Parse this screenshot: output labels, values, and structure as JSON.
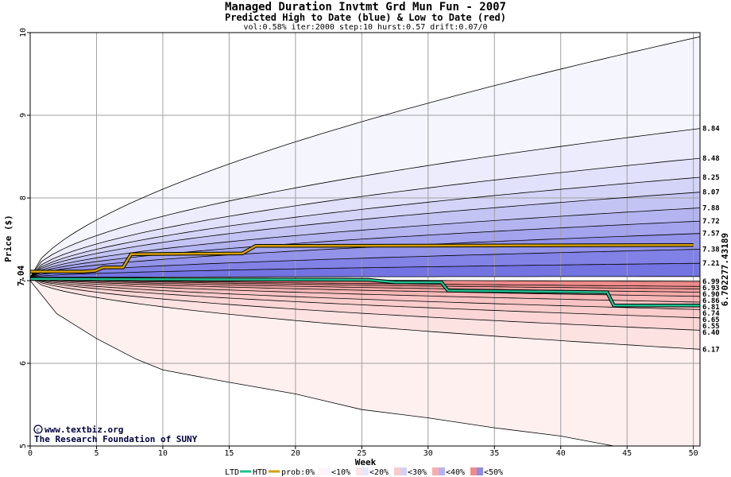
{
  "chart_data": {
    "type": "area",
    "title": "Managed Duration Invtmt Grd Mun Fun - 2007",
    "subtitle": "Predicted High to Date (blue) &  Low to Date (red)",
    "params": "vol:0.58% iter:2000 step:10 hurst:0.57 drift:0.07/0",
    "xlabel": "Week",
    "ylabel": "Price ($)",
    "xlim": [
      0,
      50.5
    ],
    "ylim": [
      5,
      10
    ],
    "x_ticks": [
      0,
      5,
      10,
      15,
      20,
      25,
      30,
      35,
      40,
      45,
      50
    ],
    "y_ticks": [
      5,
      6,
      7,
      8,
      9,
      10
    ],
    "grid": true,
    "start_price_label": "7.04",
    "start_price": 7.04,
    "high_levels": [
      "8.84",
      "8.48",
      "8.25",
      "8.07",
      "7.88",
      "7.72",
      "7.57",
      "7.38",
      "7.21"
    ],
    "low_levels": [
      "6.99",
      "6.93",
      "6.90",
      "6.86",
      "6.81",
      "6.74",
      "6.65",
      "6.55",
      "6.40",
      "6.17"
    ],
    "high_quantiles": [
      9.95,
      8.84,
      8.48,
      8.25,
      8.07,
      7.88,
      7.72,
      7.57,
      7.38,
      7.21,
      7.05
    ],
    "low_quantiles": [
      6.99,
      6.93,
      6.9,
      6.86,
      6.81,
      6.74,
      6.65,
      6.55,
      6.4,
      6.17,
      5.0
    ],
    "outer_low_series": {
      "x": [
        0,
        2,
        5,
        8,
        10,
        15,
        20,
        25,
        30,
        35,
        40,
        44
      ],
      "y": [
        7.0,
        6.6,
        6.3,
        6.05,
        5.92,
        5.77,
        5.63,
        5.44,
        5.34,
        5.22,
        5.12,
        5.0
      ]
    },
    "final_high_label": "7.43189",
    "final_low_label": "6.70227",
    "htd_series": {
      "name": "HTD",
      "color": "#d4a000",
      "x": [
        0,
        3.9,
        4.9,
        5.5,
        7,
        7.6,
        16,
        17,
        50
      ],
      "y": [
        7.11,
        7.11,
        7.12,
        7.16,
        7.16,
        7.32,
        7.33,
        7.42,
        7.43
      ]
    },
    "ltd_series": {
      "name": "LTD",
      "color": "#20c090",
      "x": [
        0,
        25.5,
        27.5,
        31,
        31.5,
        43.5,
        44,
        50.5
      ],
      "y": [
        7.02,
        7.01,
        6.98,
        6.98,
        6.88,
        6.86,
        6.7,
        6.7
      ]
    },
    "legend": {
      "placement": "bottom",
      "ltd": "LTD",
      "htd": "HTD",
      "prob_label": "prob:0%",
      "items": [
        "<10%",
        "<20%",
        "<30%",
        "<40%",
        "<50%"
      ],
      "colors_blue": [
        "#f6f6ff",
        "#e6e6fc",
        "#d1d1f7",
        "#b3b3f1",
        "#8c8ce8"
      ],
      "colors_red": [
        "#fff5f5",
        "#fde4e4",
        "#fbcbcb",
        "#f8adad",
        "#f08a8a"
      ]
    },
    "credit_url": "www.textbiz.org",
    "credit_org": "The Research Foundation of SUNY",
    "colors": {
      "high_bands": [
        "#f5f5fe",
        "#ececfc",
        "#e1e1fb",
        "#d4d4f8",
        "#c4c4f4",
        "#b4b4f1",
        "#a3a3ee",
        "#9393ea",
        "#8181e6",
        "#7373e2"
      ],
      "low_bands": [
        "#f08a8a",
        "#f29393",
        "#f49f9f",
        "#f6abab",
        "#f7b6b6",
        "#f9c3c3",
        "#facccc",
        "#fcd6d6",
        "#fde2e2",
        "#fff0f0"
      ],
      "htd": "#d4a000",
      "ltd": "#20c090",
      "grid": "#a0a0a0",
      "credit": "#000040"
    }
  }
}
